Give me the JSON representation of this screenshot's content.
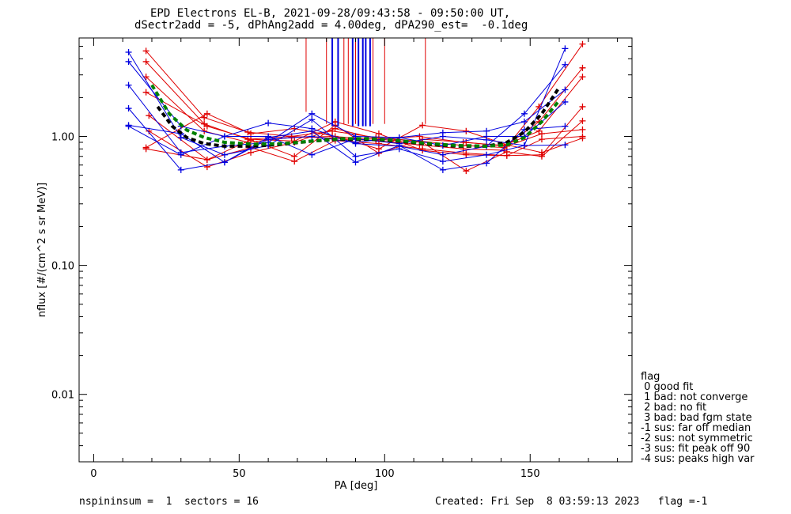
{
  "header": {
    "title_line1": "EPD Electrons EL-B, 2021-09-28/09:43:58 - 09:50:00 UT,",
    "title_line2": "dSectr2add = -5, dPhAng2add = 4.00deg, dPA290_est=  -0.1deg"
  },
  "legend": {
    "title": "flag",
    "items": [
      " 0 good fit",
      " 1 bad: not converge",
      " 2 bad: no fit",
      " 3 bad: bad fgm state",
      "-1 sus: far off median",
      "-2 sus: not symmetric",
      "-3 sus: fit peak off 90",
      "-4 sus: peaks high var"
    ]
  },
  "footer": {
    "left": "nspininsum =  1  sectors = 16",
    "right": "Created: Fri Sep  8 03:59:13 2023   flag =-1"
  },
  "colors": {
    "red": "#e00000",
    "blue": "#0000e0",
    "black_fit": "#000000",
    "green_fit": "#00e000"
  },
  "chart_data": {
    "type": "line",
    "title": "EPD Electrons EL-B, 2021-09-28/09:43:58 - 09:50:00 UT,",
    "subtitle": "dSectr2add = -5, dPhAng2add = 4.00deg, dPA290_est=  -0.1deg",
    "xlabel": "PA [deg]",
    "ylabel": "nflux [#/(cm^2 s sr MeV)]",
    "xlim": [
      -5,
      185
    ],
    "ylim": [
      0.003,
      5.8
    ],
    "yscale": "log",
    "xticks": [
      0,
      50,
      100,
      150
    ],
    "xtick_labels": [
      "0",
      "50",
      "100",
      "150"
    ],
    "yticks": [
      0.01,
      0.1,
      1.0
    ],
    "ytick_labels": [
      "0.01",
      "0.10",
      "1.00"
    ],
    "grid": false,
    "series": [
      {
        "color": "red",
        "x": [
          18,
          38,
          53,
          68,
          82,
          97,
          112,
          127,
          141,
          153,
          168
        ],
        "y": [
          4.6,
          1.4,
          1.08,
          1.0,
          0.97,
          0.93,
          0.86,
          0.8,
          0.78,
          1.7,
          5.2
        ]
      },
      {
        "color": "red",
        "x": [
          18,
          38,
          53,
          68,
          82,
          97,
          112,
          127,
          141,
          153,
          168
        ],
        "y": [
          3.8,
          1.25,
          0.95,
          1.0,
          1.1,
          0.98,
          0.92,
          0.85,
          0.82,
          1.3,
          3.4
        ]
      },
      {
        "color": "red",
        "x": [
          18,
          38,
          53,
          68,
          82,
          97,
          112,
          127,
          141,
          153,
          168
        ],
        "y": [
          2.9,
          1.1,
          0.9,
          0.98,
          1.0,
          0.95,
          1.0,
          0.9,
          0.85,
          1.1,
          2.9
        ]
      },
      {
        "color": "red",
        "x": [
          19,
          39,
          54,
          69,
          83,
          98,
          113,
          128,
          142,
          154,
          168
        ],
        "y": [
          1.45,
          0.66,
          0.82,
          0.64,
          0.93,
          0.88,
          0.8,
          0.74,
          0.71,
          0.72,
          1.7
        ]
      },
      {
        "color": "red",
        "x": [
          19,
          39,
          54,
          69,
          83,
          98,
          113,
          128,
          142,
          154,
          168
        ],
        "y": [
          1.1,
          0.58,
          0.75,
          0.9,
          1.15,
          0.95,
          0.9,
          0.54,
          0.76,
          0.7,
          1.32
        ]
      },
      {
        "color": "red",
        "x": [
          18,
          39,
          54,
          69,
          83,
          98,
          113,
          128,
          142,
          154,
          168
        ],
        "y": [
          0.8,
          0.66,
          0.94,
          0.7,
          1.22,
          0.74,
          0.95,
          0.9,
          0.84,
          1.05,
          1.13
        ]
      },
      {
        "color": "red",
        "x": [
          18,
          39,
          54,
          69,
          83,
          98,
          113,
          128,
          142,
          154,
          168
        ],
        "y": [
          0.82,
          1.5,
          1.05,
          1.15,
          1.0,
          0.8,
          1.22,
          1.1,
          0.86,
          0.75,
          0.97
        ]
      },
      {
        "color": "red",
        "x": [
          18,
          39,
          54,
          69,
          83,
          98,
          113,
          128,
          142,
          154,
          168
        ],
        "y": [
          2.2,
          1.2,
          0.95,
          0.92,
          1.3,
          1.05,
          0.78,
          0.72,
          0.71,
          0.95,
          1.0
        ]
      },
      {
        "color": "blue",
        "x": [
          12,
          30,
          45,
          60,
          75,
          90,
          105,
          120,
          135,
          148,
          162
        ],
        "y": [
          4.5,
          0.98,
          0.72,
          0.85,
          1.35,
          0.7,
          0.8,
          0.64,
          0.72,
          0.85,
          4.8
        ]
      },
      {
        "color": "blue",
        "x": [
          12,
          30,
          45,
          60,
          75,
          90,
          105,
          120,
          135,
          148,
          162
        ],
        "y": [
          3.8,
          1.2,
          1.0,
          1.27,
          1.15,
          0.88,
          0.84,
          0.72,
          0.84,
          1.5,
          3.6
        ]
      },
      {
        "color": "blue",
        "x": [
          12,
          30,
          45,
          60,
          75,
          90,
          105,
          120,
          135,
          148,
          162
        ],
        "y": [
          2.5,
          0.75,
          0.84,
          0.9,
          1.5,
          1.0,
          0.98,
          1.07,
          1.1,
          1.3,
          2.3
        ]
      },
      {
        "color": "blue",
        "x": [
          12,
          30,
          45,
          60,
          75,
          90,
          105,
          120,
          135,
          148,
          162
        ],
        "y": [
          1.65,
          0.55,
          0.63,
          0.98,
          1.1,
          0.63,
          0.85,
          0.55,
          0.62,
          1.13,
          1.2
        ]
      },
      {
        "color": "blue",
        "x": [
          12,
          30,
          45,
          60,
          75,
          90,
          105,
          120,
          135,
          148,
          162
        ],
        "y": [
          1.2,
          0.72,
          1.0,
          1.0,
          0.72,
          0.96,
          0.88,
          1.0,
          0.94,
          0.85,
          0.86
        ]
      },
      {
        "color": "blue",
        "x": [
          12,
          30,
          45,
          60,
          75,
          90,
          105,
          120,
          135,
          148,
          162
        ],
        "y": [
          1.22,
          1.05,
          0.63,
          0.95,
          1.0,
          0.9,
          0.98,
          0.85,
          1.0,
          1.0,
          1.85
        ]
      }
    ],
    "fits": [
      {
        "name": "black dashed fit",
        "color": "black",
        "x": [
          22,
          27,
          32,
          38,
          45,
          55,
          65,
          75,
          85,
          95,
          105,
          115,
          125,
          135,
          142,
          148,
          154,
          160
        ],
        "y": [
          1.7,
          1.2,
          0.98,
          0.88,
          0.84,
          0.84,
          0.87,
          0.92,
          0.95,
          0.95,
          0.92,
          0.87,
          0.84,
          0.84,
          0.9,
          1.08,
          1.5,
          2.4
        ]
      },
      {
        "name": "green dashed fit",
        "color": "green",
        "x": [
          20,
          26,
          32,
          38,
          45,
          55,
          65,
          75,
          85,
          95,
          105,
          115,
          125,
          135,
          142,
          148,
          154,
          160
        ],
        "y": [
          2.5,
          1.5,
          1.12,
          0.98,
          0.9,
          0.87,
          0.88,
          0.92,
          0.96,
          0.96,
          0.93,
          0.88,
          0.85,
          0.84,
          0.86,
          0.98,
          1.3,
          1.9
        ]
      }
    ],
    "vertical_markers": [
      {
        "color": "red",
        "x": 73,
        "y_bottom": 1.55
      },
      {
        "color": "red",
        "x": 80,
        "y_bottom": 1.25
      },
      {
        "color": "blue",
        "x": 82,
        "y_bottom": 1.2
      },
      {
        "color": "blue",
        "x": 84,
        "y_bottom": 1.2
      },
      {
        "color": "red",
        "x": 86,
        "y_bottom": 1.25
      },
      {
        "color": "red",
        "x": 87.5,
        "y_bottom": 1.25
      },
      {
        "color": "blue",
        "x": 89,
        "y_bottom": 1.2
      },
      {
        "color": "red",
        "x": 90,
        "y_bottom": 1.25
      },
      {
        "color": "blue",
        "x": 91,
        "y_bottom": 1.2
      },
      {
        "color": "blue",
        "x": 92.5,
        "y_bottom": 1.2
      },
      {
        "color": "blue",
        "x": 93.5,
        "y_bottom": 1.2
      },
      {
        "color": "blue",
        "x": 95,
        "y_bottom": 1.2
      },
      {
        "color": "red",
        "x": 96,
        "y_bottom": 1.25
      },
      {
        "color": "red",
        "x": 100,
        "y_bottom": 1.25
      },
      {
        "color": "red",
        "x": 114,
        "y_bottom": 1.25
      }
    ]
  }
}
